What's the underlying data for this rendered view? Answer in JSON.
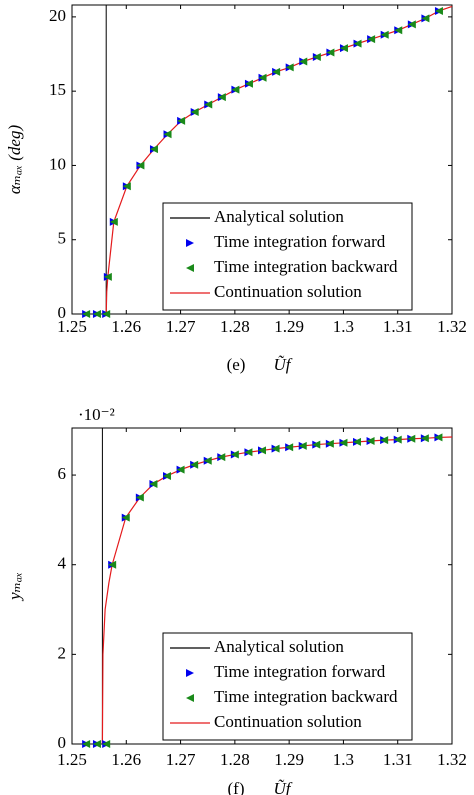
{
  "chart_data": [
    {
      "type": "line",
      "caption": "(e)",
      "xlabel": "Ũf",
      "ylabel": "αₘₐₓ (deg)",
      "xlim": [
        1.25,
        1.32
      ],
      "xticks": [
        1.25,
        1.26,
        1.27,
        1.28,
        1.29,
        1.3,
        1.31,
        1.32
      ],
      "ylim": [
        0,
        20.8
      ],
      "yticks": [
        0,
        5,
        10,
        15,
        20
      ],
      "legend": "lower right",
      "series": [
        {
          "name": "Analytical solution",
          "color": "#000000",
          "style": "vline",
          "x": [
            1.2563
          ]
        },
        {
          "name": "Time integration forward",
          "color": "#0000ee",
          "style": "marker-right",
          "x": [
            1.2526,
            1.2546,
            1.2563,
            1.2566,
            1.2577,
            1.2601,
            1.2626,
            1.2651,
            1.2676,
            1.2701,
            1.2726,
            1.2751,
            1.2776,
            1.2801,
            1.2826,
            1.2851,
            1.2876,
            1.2901,
            1.2926,
            1.2951,
            1.2976,
            1.3001,
            1.3026,
            1.3051,
            1.3076,
            1.3101,
            1.3126,
            1.3151,
            1.3176
          ],
          "values": [
            0,
            0,
            0,
            2.5,
            6.2,
            8.6,
            10.0,
            11.1,
            12.1,
            13.0,
            13.6,
            14.1,
            14.6,
            15.1,
            15.5,
            15.9,
            16.3,
            16.6,
            17.0,
            17.3,
            17.6,
            17.9,
            18.2,
            18.5,
            18.8,
            19.1,
            19.5,
            19.9,
            20.4
          ]
        },
        {
          "name": "Time integration backward",
          "color": "#1a8a1a",
          "style": "marker-left",
          "x": [
            1.2526,
            1.2546,
            1.2563,
            1.2566,
            1.2577,
            1.2601,
            1.2626,
            1.2651,
            1.2676,
            1.2701,
            1.2726,
            1.2751,
            1.2776,
            1.2801,
            1.2826,
            1.2851,
            1.2876,
            1.2901,
            1.2926,
            1.2951,
            1.2976,
            1.3001,
            1.3026,
            1.3051,
            1.3076,
            1.3101,
            1.3126,
            1.3151,
            1.3176
          ],
          "values": [
            0,
            0,
            0,
            2.5,
            6.2,
            8.6,
            10.0,
            11.1,
            12.1,
            13.0,
            13.6,
            14.1,
            14.6,
            15.1,
            15.5,
            15.9,
            16.3,
            16.6,
            17.0,
            17.3,
            17.6,
            17.9,
            18.2,
            18.5,
            18.8,
            19.1,
            19.5,
            19.9,
            20.4
          ]
        },
        {
          "name": "Continuation solution",
          "color": "#e41a1c",
          "style": "line",
          "x": [
            1.2563,
            1.2564,
            1.2566,
            1.2577,
            1.2601,
            1.2626,
            1.2651,
            1.2676,
            1.2701,
            1.2726,
            1.2751,
            1.2776,
            1.2801,
            1.2826,
            1.2851,
            1.2876,
            1.2901,
            1.2926,
            1.2951,
            1.2976,
            1.3001,
            1.3026,
            1.3051,
            1.3076,
            1.3101,
            1.3126,
            1.3151,
            1.3176,
            1.32
          ],
          "values": [
            0,
            1.5,
            2.5,
            6.2,
            8.6,
            10.0,
            11.1,
            12.1,
            13.0,
            13.6,
            14.1,
            14.6,
            15.1,
            15.5,
            15.9,
            16.3,
            16.6,
            17.0,
            17.3,
            17.6,
            17.9,
            18.2,
            18.5,
            18.8,
            19.1,
            19.5,
            19.9,
            20.4,
            20.7
          ]
        }
      ]
    },
    {
      "type": "line",
      "caption": "(f)",
      "xlabel": "Ũf",
      "ylabel": "yₘₐₓ",
      "multiplier": "·10⁻²",
      "xlim": [
        1.25,
        1.32
      ],
      "xticks": [
        1.25,
        1.26,
        1.27,
        1.28,
        1.29,
        1.3,
        1.31,
        1.32
      ],
      "ylim": [
        0,
        7.05
      ],
      "yticks": [
        0,
        2,
        4,
        6
      ],
      "legend": "lower right",
      "series": [
        {
          "name": "Analytical solution",
          "color": "#000000",
          "style": "vline",
          "x": [
            1.2556
          ]
        },
        {
          "name": "Time integration forward",
          "color": "#0000ee",
          "style": "marker-right",
          "x": [
            1.2526,
            1.2546,
            1.2563,
            1.2574,
            1.2599,
            1.2625,
            1.265,
            1.2675,
            1.27,
            1.2725,
            1.275,
            1.2775,
            1.28,
            1.2825,
            1.285,
            1.2875,
            1.29,
            1.2925,
            1.295,
            1.2975,
            1.3,
            1.3025,
            1.305,
            1.3075,
            1.31,
            1.3125,
            1.315,
            1.3175
          ],
          "values": [
            0,
            0,
            0,
            4.0,
            5.05,
            5.5,
            5.8,
            5.98,
            6.12,
            6.23,
            6.32,
            6.4,
            6.46,
            6.51,
            6.55,
            6.59,
            6.62,
            6.65,
            6.68,
            6.7,
            6.72,
            6.74,
            6.76,
            6.78,
            6.79,
            6.81,
            6.82,
            6.84
          ]
        },
        {
          "name": "Time integration backward",
          "color": "#1a8a1a",
          "style": "marker-left",
          "x": [
            1.2526,
            1.2546,
            1.2563,
            1.2574,
            1.2599,
            1.2625,
            1.265,
            1.2675,
            1.27,
            1.2725,
            1.275,
            1.2775,
            1.28,
            1.2825,
            1.285,
            1.2875,
            1.29,
            1.2925,
            1.295,
            1.2975,
            1.3,
            1.3025,
            1.305,
            1.3075,
            1.31,
            1.3125,
            1.315,
            1.3175
          ],
          "values": [
            0,
            0,
            0,
            4.0,
            5.05,
            5.5,
            5.8,
            5.98,
            6.12,
            6.23,
            6.32,
            6.4,
            6.46,
            6.51,
            6.55,
            6.59,
            6.62,
            6.65,
            6.68,
            6.7,
            6.72,
            6.74,
            6.76,
            6.78,
            6.79,
            6.81,
            6.82,
            6.84
          ]
        },
        {
          "name": "Continuation solution",
          "color": "#e41a1c",
          "style": "line",
          "x": [
            1.2556,
            1.2557,
            1.2561,
            1.2568,
            1.2574,
            1.2599,
            1.2625,
            1.265,
            1.2675,
            1.27,
            1.2725,
            1.275,
            1.2775,
            1.28,
            1.2825,
            1.285,
            1.2875,
            1.29,
            1.2925,
            1.295,
            1.2975,
            1.3,
            1.3025,
            1.305,
            1.3075,
            1.31,
            1.3125,
            1.315,
            1.3175,
            1.32
          ],
          "values": [
            0,
            2.0,
            3.0,
            3.6,
            4.0,
            5.05,
            5.5,
            5.8,
            5.98,
            6.12,
            6.23,
            6.32,
            6.4,
            6.46,
            6.51,
            6.55,
            6.59,
            6.62,
            6.65,
            6.68,
            6.7,
            6.72,
            6.74,
            6.76,
            6.78,
            6.79,
            6.81,
            6.82,
            6.84,
            6.85
          ]
        }
      ]
    }
  ]
}
